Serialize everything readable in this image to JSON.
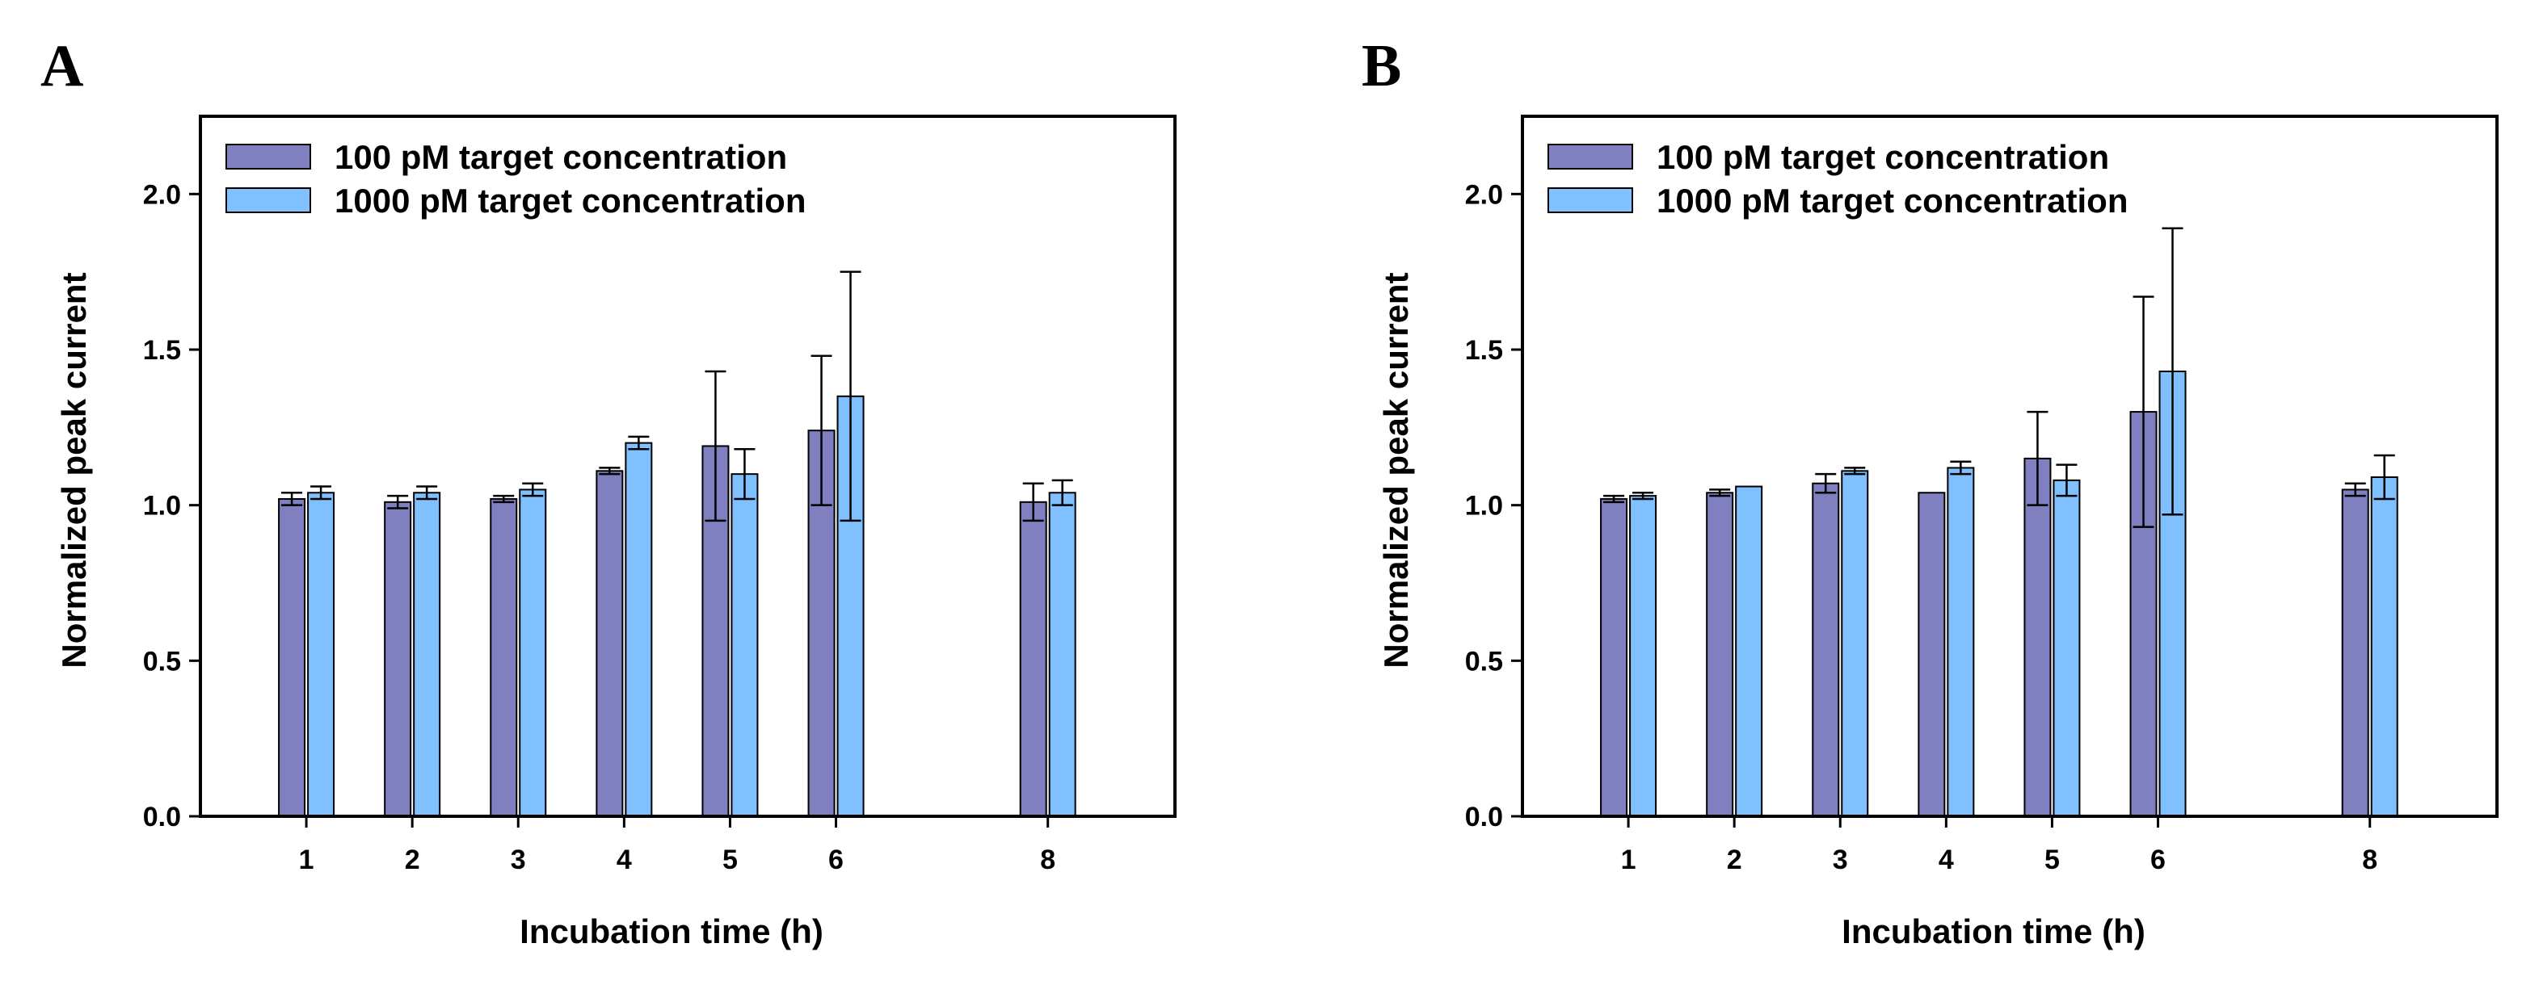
{
  "colors": {
    "series_100": "#8080c0",
    "series_1000": "#80c0ff",
    "stroke": "#000000"
  },
  "chart_data": [
    {
      "panel": "A",
      "type": "bar",
      "xlabel": "Incubation time (h)",
      "ylabel": "Normalized peak current",
      "ylim": [
        0,
        2.25
      ],
      "yticks": [
        "0.0",
        "0.5",
        "1.0",
        "1.5",
        "2.0"
      ],
      "x_range": [
        0,
        9.2
      ],
      "x": [
        1,
        2,
        3,
        4,
        5,
        6,
        8
      ],
      "xticks": [
        "1",
        "2",
        "3",
        "4",
        "5",
        "6",
        "8"
      ],
      "legend_position": "top-left",
      "series": [
        {
          "name": "100 pM target concentration",
          "values": [
            1.02,
            1.01,
            1.02,
            1.11,
            1.19,
            1.24,
            1.01
          ],
          "errors": [
            0.02,
            0.02,
            0.01,
            0.01,
            0.24,
            0.24,
            0.06
          ]
        },
        {
          "name": "1000 pM target concentration",
          "values": [
            1.04,
            1.04,
            1.05,
            1.2,
            1.1,
            1.35,
            1.04
          ],
          "errors": [
            0.02,
            0.02,
            0.02,
            0.02,
            0.08,
            0.4,
            0.04
          ]
        }
      ]
    },
    {
      "panel": "B",
      "type": "bar",
      "xlabel": "Incubation time (h)",
      "ylabel": "Normalized peak current",
      "ylim": [
        0,
        2.25
      ],
      "yticks": [
        "0.0",
        "0.5",
        "1.0",
        "1.5",
        "2.0"
      ],
      "x_range": [
        0,
        9.2
      ],
      "x": [
        1,
        2,
        3,
        4,
        5,
        6,
        8
      ],
      "xticks": [
        "1",
        "2",
        "3",
        "4",
        "5",
        "6",
        "8"
      ],
      "legend_position": "top-left",
      "series": [
        {
          "name": "100 pM target concentration",
          "values": [
            1.02,
            1.04,
            1.07,
            1.04,
            1.15,
            1.3,
            1.05
          ],
          "errors": [
            0.01,
            0.01,
            0.03,
            0.0,
            0.15,
            0.37,
            0.02
          ]
        },
        {
          "name": "1000 pM target concentration",
          "values": [
            1.03,
            1.06,
            1.11,
            1.12,
            1.08,
            1.43,
            1.09
          ],
          "errors": [
            0.01,
            0.0,
            0.01,
            0.02,
            0.05,
            0.46,
            0.07
          ]
        }
      ]
    }
  ]
}
